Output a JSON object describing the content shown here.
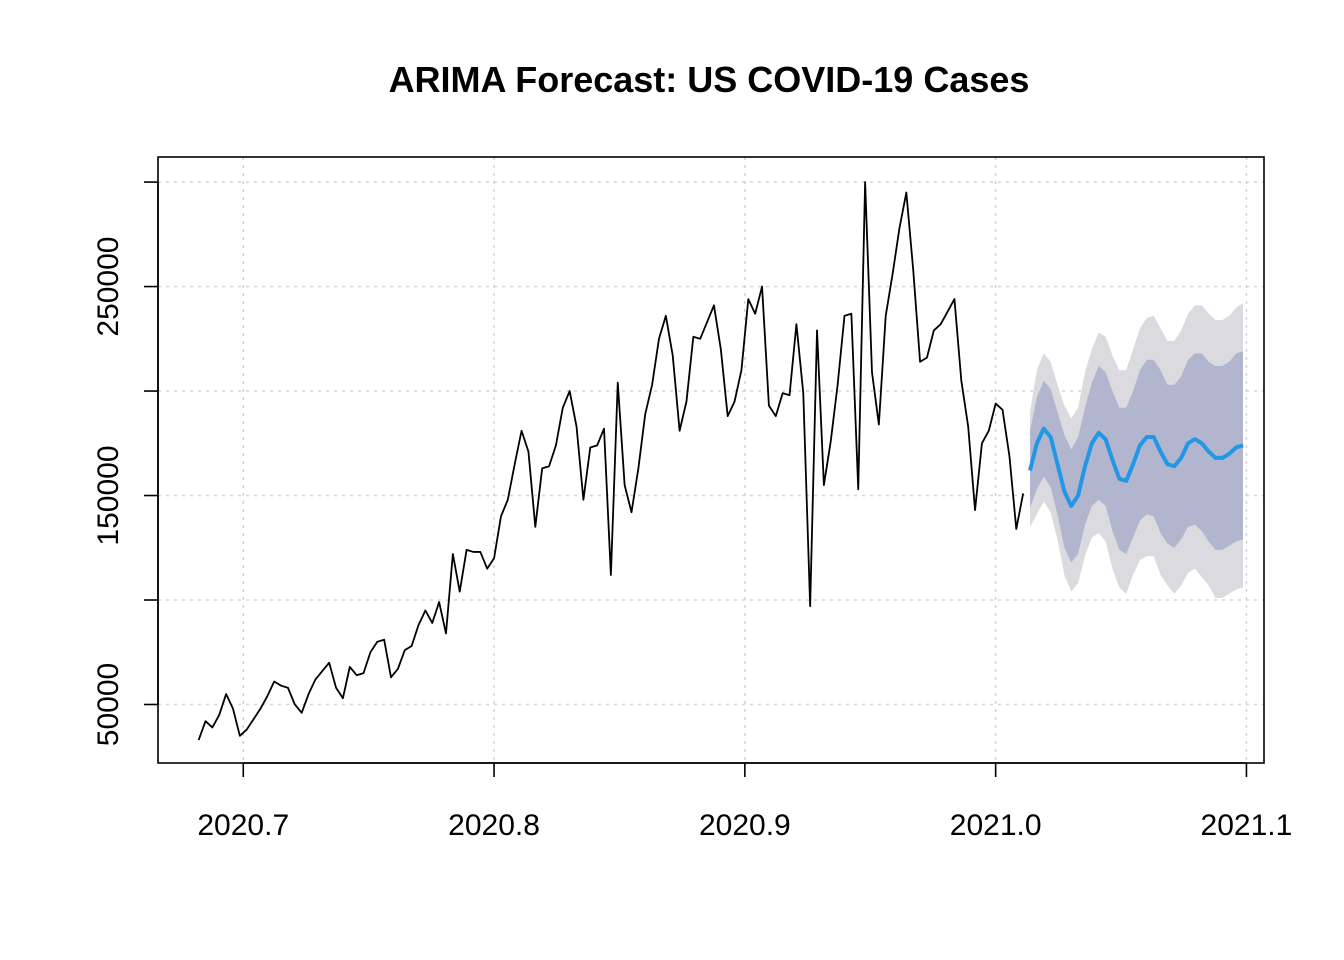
{
  "chart_data": {
    "type": "line",
    "title": "ARIMA Forecast: US COVID-19 Cases",
    "xlabel": "",
    "ylabel": "",
    "xlim": [
      2020.666,
      2021.107
    ],
    "ylim": [
      22000,
      312000
    ],
    "x_ticks": [
      2020.7,
      2020.8,
      2020.9,
      2021.0,
      2021.1
    ],
    "x_tick_labels": [
      "2020.7",
      "2020.8",
      "2020.9",
      "2021.0",
      "2021.1"
    ],
    "y_ticks": [
      50000,
      100000,
      150000,
      200000,
      250000,
      300000
    ],
    "y_tick_labels": [
      "50000",
      "",
      "150000",
      "",
      "250000",
      ""
    ],
    "grid": true,
    "x_start": 2020.6822,
    "x_step": 0.0027397,
    "colors": {
      "history": "#000000",
      "forecast": "#2297e6",
      "band80": "#b1b5ce",
      "band95": "#dbdbdf"
    },
    "series": [
      {
        "role": "history",
        "values": [
          33000,
          42000,
          39000,
          45000,
          55000,
          48000,
          35000,
          38000,
          43000,
          48000,
          54000,
          61000,
          59000,
          58000,
          50000,
          46000,
          55000,
          62000,
          66000,
          70000,
          58000,
          53000,
          68000,
          64000,
          65000,
          75000,
          80000,
          81000,
          63000,
          67000,
          76000,
          78000,
          88000,
          95000,
          89000,
          99000,
          84000,
          122000,
          104000,
          124000,
          123000,
          123000,
          115000,
          120000,
          140000,
          148000,
          165000,
          181000,
          171000,
          135000,
          163000,
          164000,
          174000,
          192000,
          200000,
          183000,
          148000,
          173000,
          174000,
          182000,
          112000,
          204000,
          155000,
          142000,
          163000,
          189000,
          203000,
          225000,
          236000,
          217000,
          181000,
          195000,
          226000,
          225000,
          233000,
          241000,
          220000,
          188000,
          195000,
          210000,
          244000,
          237000,
          250000,
          193000,
          188000,
          199000,
          198000,
          232000,
          199000,
          97000,
          229000,
          155000,
          176000,
          203000,
          236000,
          237000,
          153000,
          300000,
          209000,
          184000,
          236000,
          256000,
          278000,
          295000,
          258000,
          214000,
          216000,
          229000,
          232000,
          238000,
          244000,
          205000,
          183000,
          143000,
          175000,
          181000,
          194000,
          191000,
          169000,
          134000,
          151000
        ]
      },
      {
        "role": "forecast",
        "name": "",
        "values": [
          162000,
          175000,
          182000,
          178000,
          165000,
          152000,
          145000,
          150000,
          164000,
          175000,
          180000,
          177000,
          167000,
          158000,
          157000,
          165000,
          174000,
          178000,
          178000,
          171000,
          165000,
          164000,
          168000,
          175000,
          177000,
          175000,
          171000,
          168000,
          168000,
          170000,
          173000,
          174000
        ],
        "lo80": [
          144000,
          153000,
          159000,
          154000,
          141000,
          125000,
          118000,
          122000,
          136000,
          145000,
          148000,
          145000,
          133000,
          124000,
          122000,
          130000,
          138000,
          141000,
          140000,
          132000,
          127000,
          125000,
          129000,
          135000,
          136000,
          133000,
          128000,
          124000,
          124000,
          126000,
          128000,
          129000
        ],
        "hi80": [
          181000,
          197000,
          205000,
          201000,
          190000,
          179000,
          172000,
          178000,
          192000,
          204000,
          212000,
          209000,
          200000,
          192000,
          192000,
          200000,
          210000,
          215000,
          215000,
          210000,
          203000,
          203000,
          207000,
          215000,
          218000,
          218000,
          214000,
          212000,
          212000,
          214000,
          218000,
          219000
        ],
        "lo95": [
          135000,
          141000,
          147000,
          142000,
          129000,
          112000,
          104000,
          108000,
          121000,
          130000,
          132000,
          128000,
          115000,
          106000,
          103000,
          112000,
          119000,
          121000,
          121000,
          112000,
          107000,
          103000,
          107000,
          113000,
          115000,
          111000,
          107000,
          101000,
          101000,
          103000,
          105000,
          106000
        ],
        "hi95": [
          190000,
          210000,
          218000,
          214000,
          203000,
          193000,
          187000,
          192000,
          209000,
          220000,
          228000,
          226000,
          217000,
          210000,
          210000,
          220000,
          230000,
          235000,
          236000,
          230000,
          224000,
          224000,
          229000,
          237000,
          241000,
          241000,
          237000,
          234000,
          234000,
          236000,
          240000,
          242000
        ]
      }
    ]
  }
}
